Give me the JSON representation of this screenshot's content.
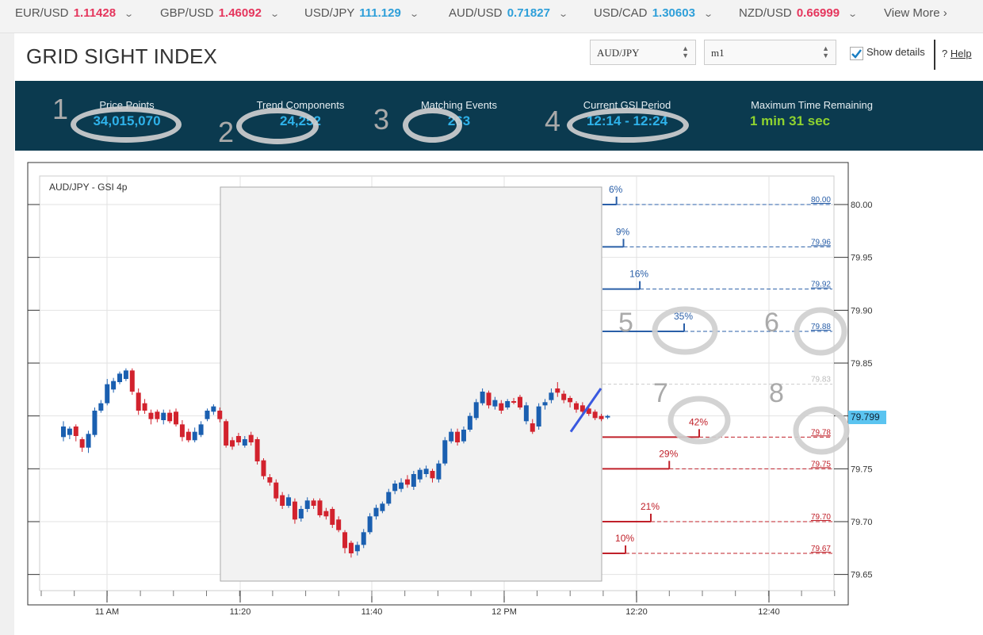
{
  "ticker": [
    {
      "pair": "EUR/USD",
      "value": "1.11428",
      "color": "#e5365d"
    },
    {
      "pair": "GBP/USD",
      "value": "1.46092",
      "color": "#e5365d"
    },
    {
      "pair": "USD/JPY",
      "value": "111.129",
      "color": "#2e9fd9"
    },
    {
      "pair": "AUD/USD",
      "value": "0.71827",
      "color": "#2e9fd9"
    },
    {
      "pair": "USD/CAD",
      "value": "1.30603",
      "color": "#2e9fd9"
    },
    {
      "pair": "NZD/USD",
      "value": "0.66999",
      "color": "#e5365d"
    }
  ],
  "view_more": "View More",
  "page_title": "GRID SIGHT INDEX",
  "controls": {
    "pair_select": "AUD/JPY",
    "timeframe_select": "m1",
    "show_details": "Show details",
    "show_details_checked": true,
    "help": "Help"
  },
  "stats": [
    {
      "label": "Price Points",
      "value": "34,015,070"
    },
    {
      "label": "Trend Components",
      "value": "24,252"
    },
    {
      "label": "Matching Events",
      "value": "263"
    },
    {
      "label": "Current GSI Period",
      "value": "12:14 - 12:24"
    },
    {
      "label": "Maximum Time Remaining",
      "value": "1 min 31 sec"
    }
  ],
  "annotations": [
    "1",
    "2",
    "3",
    "4",
    "5",
    "6",
    "7",
    "8"
  ],
  "colors": {
    "up": "#1a5fb0",
    "down": "#d2222d",
    "header_bg": "#0b3a4f",
    "accent": "#2eb2ea",
    "remaining": "#8fd32f",
    "price_badge": "#5bc4f0"
  },
  "chart_data": {
    "type": "candlestick",
    "title": "AUD/JPY - GSI 4p",
    "ylim": [
      79.63,
      80.03
    ],
    "y_ticks": [
      "80.00",
      "79.95",
      "79.90",
      "79.85",
      "79.80",
      "79.75",
      "79.70",
      "79.65"
    ],
    "x_ticks": [
      "11 AM",
      "11:20",
      "11:40",
      "12 PM",
      "12:20",
      "12:40"
    ],
    "current_price": "79.799",
    "candles": [
      {
        "o": 79.78,
        "c": 79.79,
        "h": 79.795,
        "l": 79.776
      },
      {
        "o": 79.782,
        "c": 79.788,
        "h": 79.79,
        "l": 79.778
      },
      {
        "o": 79.79,
        "c": 79.781,
        "h": 79.792,
        "l": 79.776
      },
      {
        "o": 79.778,
        "c": 79.77,
        "h": 79.78,
        "l": 79.766
      },
      {
        "o": 79.77,
        "c": 79.783,
        "h": 79.786,
        "l": 79.765
      },
      {
        "o": 79.782,
        "c": 79.805,
        "h": 79.808,
        "l": 79.78
      },
      {
        "o": 79.805,
        "c": 79.812,
        "h": 79.815,
        "l": 79.803
      },
      {
        "o": 79.812,
        "c": 79.83,
        "h": 79.835,
        "l": 79.81
      },
      {
        "o": 79.825,
        "c": 79.833,
        "h": 79.836,
        "l": 79.822
      },
      {
        "o": 79.832,
        "c": 79.84,
        "h": 79.842,
        "l": 79.83
      },
      {
        "o": 79.835,
        "c": 79.843,
        "h": 79.845,
        "l": 79.833
      },
      {
        "o": 79.843,
        "c": 79.823,
        "h": 79.845,
        "l": 79.82
      },
      {
        "o": 79.822,
        "c": 79.805,
        "h": 79.826,
        "l": 79.801
      },
      {
        "o": 79.812,
        "c": 79.805,
        "h": 79.816,
        "l": 79.802
      },
      {
        "o": 79.803,
        "c": 79.797,
        "h": 79.806,
        "l": 79.792
      },
      {
        "o": 79.804,
        "c": 79.797,
        "h": 79.806,
        "l": 79.794
      },
      {
        "o": 79.796,
        "c": 79.803,
        "h": 79.806,
        "l": 79.792
      },
      {
        "o": 79.803,
        "c": 79.795,
        "h": 79.806,
        "l": 79.793
      },
      {
        "o": 79.804,
        "c": 79.792,
        "h": 79.807,
        "l": 79.79
      },
      {
        "o": 79.792,
        "c": 79.78,
        "h": 79.796,
        "l": 79.776
      },
      {
        "o": 79.785,
        "c": 79.777,
        "h": 79.788,
        "l": 79.775
      },
      {
        "o": 79.777,
        "c": 79.785,
        "h": 79.789,
        "l": 79.775
      },
      {
        "o": 79.782,
        "c": 79.792,
        "h": 79.795,
        "l": 79.78
      },
      {
        "o": 79.797,
        "c": 79.805,
        "h": 79.807,
        "l": 79.795
      },
      {
        "o": 79.804,
        "c": 79.809,
        "h": 79.811,
        "l": 79.801
      },
      {
        "o": 79.805,
        "c": 79.797,
        "h": 79.808,
        "l": 79.794
      },
      {
        "o": 79.795,
        "c": 79.772,
        "h": 79.797,
        "l": 79.77
      },
      {
        "o": 79.777,
        "c": 79.771,
        "h": 79.78,
        "l": 79.768
      },
      {
        "o": 79.781,
        "c": 79.775,
        "h": 79.784,
        "l": 79.772
      },
      {
        "o": 79.772,
        "c": 79.778,
        "h": 79.781,
        "l": 79.77
      },
      {
        "o": 79.782,
        "c": 79.775,
        "h": 79.785,
        "l": 79.772
      },
      {
        "o": 79.778,
        "c": 79.757,
        "h": 79.78,
        "l": 79.754
      },
      {
        "o": 79.758,
        "c": 79.743,
        "h": 79.76,
        "l": 79.74
      },
      {
        "o": 79.742,
        "c": 79.737,
        "h": 79.745,
        "l": 79.734
      },
      {
        "o": 79.737,
        "c": 79.722,
        "h": 79.74,
        "l": 79.719
      },
      {
        "o": 79.725,
        "c": 79.715,
        "h": 79.728,
        "l": 79.712
      },
      {
        "o": 79.715,
        "c": 79.723,
        "h": 79.726,
        "l": 79.713
      },
      {
        "o": 79.719,
        "c": 79.702,
        "h": 79.722,
        "l": 79.698
      },
      {
        "o": 79.703,
        "c": 79.712,
        "h": 79.715,
        "l": 79.7
      },
      {
        "o": 79.712,
        "c": 79.72,
        "h": 79.723,
        "l": 79.709
      },
      {
        "o": 79.72,
        "c": 79.715,
        "h": 79.722,
        "l": 79.712
      },
      {
        "o": 79.72,
        "c": 79.706,
        "h": 79.722,
        "l": 79.704
      },
      {
        "o": 79.71,
        "c": 79.705,
        "h": 79.713,
        "l": 79.702
      },
      {
        "o": 79.712,
        "c": 79.697,
        "h": 79.714,
        "l": 79.694
      },
      {
        "o": 79.702,
        "c": 79.692,
        "h": 79.705,
        "l": 79.69
      },
      {
        "o": 79.69,
        "c": 79.675,
        "h": 79.692,
        "l": 79.67
      },
      {
        "o": 79.68,
        "c": 79.67,
        "h": 79.682,
        "l": 79.666
      },
      {
        "o": 79.672,
        "c": 79.678,
        "h": 79.681,
        "l": 79.668
      },
      {
        "o": 79.678,
        "c": 79.69,
        "h": 79.693,
        "l": 79.675
      },
      {
        "o": 79.69,
        "c": 79.705,
        "h": 79.708,
        "l": 79.688
      },
      {
        "o": 79.705,
        "c": 79.713,
        "h": 79.716,
        "l": 79.702
      },
      {
        "o": 79.71,
        "c": 79.717,
        "h": 79.719,
        "l": 79.708
      },
      {
        "o": 79.717,
        "c": 79.728,
        "h": 79.731,
        "l": 79.715
      },
      {
        "o": 79.729,
        "c": 79.736,
        "h": 79.739,
        "l": 79.726
      },
      {
        "o": 79.731,
        "c": 79.737,
        "h": 79.741,
        "l": 79.728
      },
      {
        "o": 79.74,
        "c": 79.735,
        "h": 79.744,
        "l": 79.732
      },
      {
        "o": 79.733,
        "c": 79.745,
        "h": 79.748,
        "l": 79.73
      },
      {
        "o": 79.74,
        "c": 79.749,
        "h": 79.751,
        "l": 79.737
      },
      {
        "o": 79.745,
        "c": 79.75,
        "h": 79.753,
        "l": 79.742
      },
      {
        "o": 79.748,
        "c": 79.741,
        "h": 79.75,
        "l": 79.737
      },
      {
        "o": 79.74,
        "c": 79.755,
        "h": 79.758,
        "l": 79.737
      },
      {
        "o": 79.755,
        "c": 79.777,
        "h": 79.78,
        "l": 79.753
      },
      {
        "o": 79.776,
        "c": 79.785,
        "h": 79.788,
        "l": 79.774
      },
      {
        "o": 79.785,
        "c": 79.775,
        "h": 79.788,
        "l": 79.772
      },
      {
        "o": 79.776,
        "c": 79.787,
        "h": 79.79,
        "l": 79.774
      },
      {
        "o": 79.787,
        "c": 79.8,
        "h": 79.803,
        "l": 79.785
      },
      {
        "o": 79.798,
        "c": 79.813,
        "h": 79.816,
        "l": 79.796
      },
      {
        "o": 79.812,
        "c": 79.823,
        "h": 79.826,
        "l": 79.81
      },
      {
        "o": 79.822,
        "c": 79.81,
        "h": 79.824,
        "l": 79.807
      },
      {
        "o": 79.809,
        "c": 79.815,
        "h": 79.818,
        "l": 79.806
      },
      {
        "o": 79.812,
        "c": 79.805,
        "h": 79.815,
        "l": 79.802
      },
      {
        "o": 79.808,
        "c": 79.814,
        "h": 79.816,
        "l": 79.806
      },
      {
        "o": 79.814,
        "c": 79.813,
        "h": 79.817,
        "l": 79.811
      },
      {
        "o": 79.818,
        "c": 79.808,
        "h": 79.82,
        "l": 79.806
      },
      {
        "o": 79.795,
        "c": 79.81,
        "h": 79.813,
        "l": 79.792
      },
      {
        "o": 79.793,
        "c": 79.785,
        "h": 79.797,
        "l": 79.783
      },
      {
        "o": 79.79,
        "c": 79.809,
        "h": 79.812,
        "l": 79.787
      },
      {
        "o": 79.81,
        "c": 79.813,
        "h": 79.816,
        "l": 79.806
      },
      {
        "o": 79.815,
        "c": 79.822,
        "h": 79.826,
        "l": 79.812
      },
      {
        "o": 79.826,
        "c": 79.822,
        "h": 79.832,
        "l": 79.818
      },
      {
        "o": 79.821,
        "c": 79.815,
        "h": 79.824,
        "l": 79.812
      },
      {
        "o": 79.817,
        "c": 79.813,
        "h": 79.819,
        "l": 79.808
      },
      {
        "o": 79.812,
        "c": 79.806,
        "h": 79.814,
        "l": 79.803
      },
      {
        "o": 79.81,
        "c": 79.804,
        "h": 79.813,
        "l": 79.802
      },
      {
        "o": 79.807,
        "c": 79.802,
        "h": 79.809,
        "l": 79.8
      },
      {
        "o": 79.804,
        "c": 79.798,
        "h": 79.806,
        "l": 79.796
      },
      {
        "o": 79.8,
        "c": 79.797,
        "h": 79.802,
        "l": 79.795
      },
      {
        "o": 79.799,
        "c": 79.8,
        "h": 79.801,
        "l": 79.797
      }
    ],
    "forecast_line": {
      "from": 79.785,
      "to": 79.826
    },
    "up_levels": [
      {
        "label": "80.00",
        "price": 80.0,
        "pct": "6%",
        "pct_value": 6
      },
      {
        "label": "79.96",
        "price": 79.96,
        "pct": "9%",
        "pct_value": 9
      },
      {
        "label": "79.92",
        "price": 79.92,
        "pct": "16%",
        "pct_value": 16
      },
      {
        "label": "79.88",
        "price": 79.88,
        "pct": "35%",
        "pct_value": 35
      }
    ],
    "mid_level": {
      "label": "79.83",
      "price": 79.83
    },
    "down_levels": [
      {
        "label": "79.78",
        "price": 79.78,
        "pct": "42%",
        "pct_value": 42
      },
      {
        "label": "79.75",
        "price": 79.75,
        "pct": "29%",
        "pct_value": 29
      },
      {
        "label": "79.70",
        "price": 79.7,
        "pct": "21%",
        "pct_value": 21
      },
      {
        "label": "79.67",
        "price": 79.67,
        "pct": "10%",
        "pct_value": 10
      }
    ]
  }
}
